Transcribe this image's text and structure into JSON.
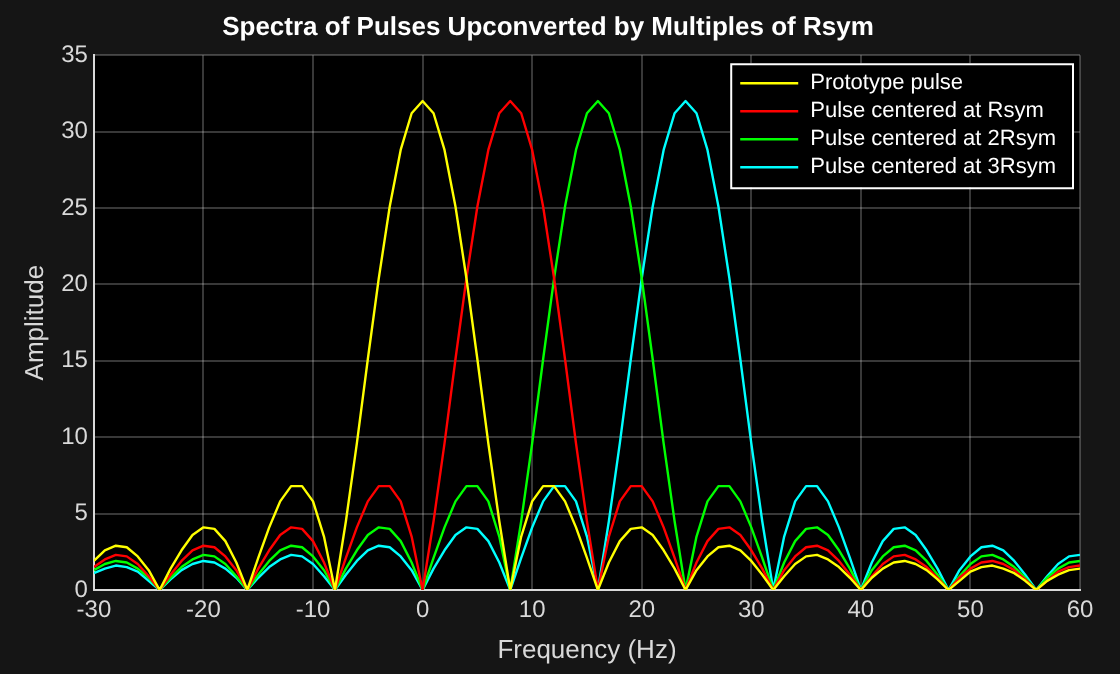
{
  "chart_data": {
    "type": "line",
    "title": "Spectra of Pulses Upconverted by Multiples of Rsym",
    "xlabel": "Frequency (Hz)",
    "ylabel": "Amplitude",
    "x": [
      -30,
      -29,
      -28,
      -27,
      -26,
      -25,
      -24,
      -23,
      -22,
      -21,
      -20,
      -19,
      -18,
      -17,
      -16,
      -15,
      -14,
      -13,
      -12,
      -11,
      -10,
      -9,
      -8,
      -7,
      -6,
      -5,
      -4,
      -3,
      -2,
      -1,
      0,
      1,
      2,
      3,
      4,
      5,
      6,
      7,
      8,
      9,
      10,
      11,
      12,
      13,
      14,
      15,
      16,
      17,
      18,
      19,
      20,
      21,
      22,
      23,
      24,
      25,
      26,
      27,
      28,
      29,
      30,
      31,
      32,
      33,
      34,
      35,
      36,
      37,
      38,
      39,
      40,
      41,
      42,
      43,
      44,
      45,
      46,
      47,
      48,
      49,
      50,
      51,
      52,
      53,
      54,
      55,
      56,
      57,
      58,
      59,
      60
    ],
    "series": [
      {
        "name": "Prototype pulse",
        "color": "#ffff00",
        "values": [
          1.9,
          2.6,
          2.9,
          2.8,
          2.2,
          1.3,
          0,
          1.4,
          2.6,
          3.6,
          4.1,
          4.0,
          3.2,
          1.8,
          0,
          2.1,
          4.1,
          5.8,
          6.8,
          6.8,
          5.8,
          3.5,
          0,
          4.5,
          9.6,
          15.1,
          20.4,
          25.1,
          28.8,
          31.2,
          32,
          31.2,
          28.8,
          25.1,
          20.4,
          15.1,
          9.6,
          4.5,
          0,
          3.5,
          5.8,
          6.8,
          6.8,
          5.8,
          4.1,
          2.1,
          0,
          1.8,
          3.2,
          4.0,
          4.1,
          3.6,
          2.6,
          1.4,
          0,
          1.3,
          2.2,
          2.8,
          2.9,
          2.6,
          1.9,
          1.0,
          0,
          0.9,
          1.7,
          2.2,
          2.3,
          2.0,
          1.5,
          0.8,
          0,
          0.8,
          1.4,
          1.8,
          1.9,
          1.7,
          1.3,
          0.7,
          0,
          0.6,
          1.2,
          1.5,
          1.6,
          1.4,
          1.1,
          0.6,
          0,
          0.6,
          1.0,
          1.3,
          1.4
        ]
      },
      {
        "name": "Pulse centered at Rsym",
        "color": "#ff0000",
        "values": [
          1.5,
          2.0,
          2.3,
          2.2,
          1.7,
          0.9,
          0,
          1.0,
          1.9,
          2.6,
          2.9,
          2.8,
          2.2,
          1.3,
          0,
          1.4,
          2.6,
          3.6,
          4.1,
          4.0,
          3.2,
          1.8,
          0,
          2.1,
          4.1,
          5.8,
          6.8,
          6.8,
          5.8,
          3.5,
          0,
          4.5,
          9.6,
          15.1,
          20.4,
          25.1,
          28.8,
          31.2,
          32,
          31.2,
          28.8,
          25.1,
          20.4,
          15.1,
          9.6,
          4.5,
          0,
          3.5,
          5.8,
          6.8,
          6.8,
          5.8,
          4.1,
          2.1,
          0,
          1.8,
          3.2,
          4.0,
          4.1,
          3.6,
          2.6,
          1.4,
          0,
          1.3,
          2.2,
          2.8,
          2.9,
          2.6,
          1.9,
          1.0,
          0,
          0.9,
          1.7,
          2.2,
          2.3,
          2.0,
          1.5,
          0.8,
          0,
          0.8,
          1.4,
          1.8,
          1.9,
          1.7,
          1.3,
          0.7,
          0,
          0.6,
          1.2,
          1.5,
          1.6
        ]
      },
      {
        "name": "Pulse centered at 2Rsym",
        "color": "#00ff00",
        "values": [
          1.3,
          1.7,
          1.9,
          1.8,
          1.4,
          0.8,
          0,
          0.8,
          1.5,
          2.0,
          2.3,
          2.2,
          1.7,
          0.9,
          0,
          1.0,
          1.9,
          2.6,
          2.9,
          2.8,
          2.2,
          1.3,
          0,
          1.4,
          2.6,
          3.6,
          4.1,
          4.0,
          3.2,
          1.8,
          0,
          2.1,
          4.1,
          5.8,
          6.8,
          6.8,
          5.8,
          3.5,
          0,
          4.5,
          9.6,
          15.1,
          20.4,
          25.1,
          28.8,
          31.2,
          32,
          31.2,
          28.8,
          25.1,
          20.4,
          15.1,
          9.6,
          4.5,
          0,
          3.5,
          5.8,
          6.8,
          6.8,
          5.8,
          4.1,
          2.1,
          0,
          1.8,
          3.2,
          4.0,
          4.1,
          3.6,
          2.6,
          1.4,
          0,
          1.3,
          2.2,
          2.8,
          2.9,
          2.6,
          1.9,
          1.0,
          0,
          0.9,
          1.7,
          2.2,
          2.3,
          2.0,
          1.5,
          0.8,
          0,
          0.8,
          1.4,
          1.8,
          1.9
        ]
      },
      {
        "name": "Pulse centered at 3Rsym",
        "color": "#00ffff",
        "values": [
          1.1,
          1.4,
          1.6,
          1.5,
          1.2,
          0.6,
          0,
          0.7,
          1.3,
          1.7,
          1.9,
          1.8,
          1.4,
          0.8,
          0,
          0.8,
          1.5,
          2.0,
          2.3,
          2.2,
          1.7,
          0.9,
          0,
          1.0,
          1.9,
          2.6,
          2.9,
          2.8,
          2.2,
          1.3,
          0,
          1.4,
          2.6,
          3.6,
          4.1,
          4.0,
          3.2,
          1.8,
          0,
          2.1,
          4.1,
          5.8,
          6.8,
          6.8,
          5.8,
          3.5,
          0,
          4.5,
          9.6,
          15.1,
          20.4,
          25.1,
          28.8,
          31.2,
          32,
          31.2,
          28.8,
          25.1,
          20.4,
          15.1,
          9.6,
          4.5,
          0,
          3.5,
          5.8,
          6.8,
          6.8,
          5.8,
          4.1,
          2.1,
          0,
          1.8,
          3.2,
          4.0,
          4.1,
          3.6,
          2.6,
          1.4,
          0,
          1.3,
          2.2,
          2.8,
          2.9,
          2.6,
          1.9,
          1.0,
          0,
          0.9,
          1.7,
          2.2,
          2.3
        ]
      }
    ],
    "xlim": [
      -30,
      60
    ],
    "xticks": [
      -30,
      -20,
      -10,
      0,
      10,
      20,
      30,
      40,
      50,
      60
    ],
    "ylim": [
      0,
      35
    ],
    "yticks": [
      0,
      5,
      10,
      15,
      20,
      25,
      30,
      35
    ],
    "grid": true,
    "legend": "top right",
    "marker": "none",
    "line_style": "solid"
  }
}
